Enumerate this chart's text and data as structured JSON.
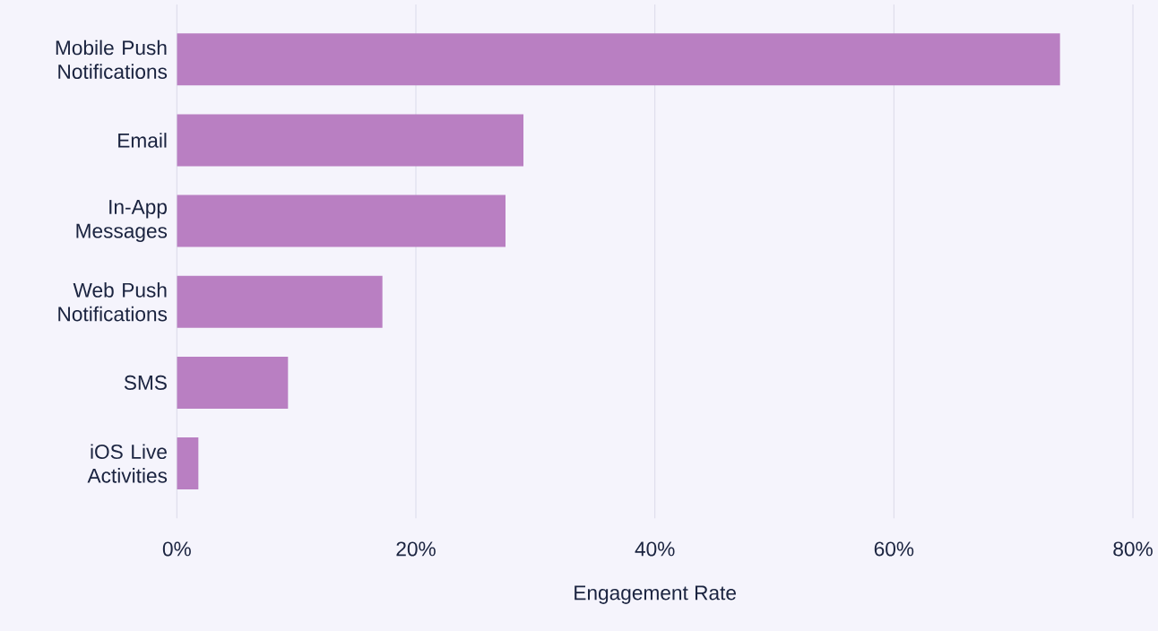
{
  "chart_data": {
    "type": "bar",
    "orientation": "horizontal",
    "xlabel": "Engagement Rate",
    "categories": [
      "Mobile Push Notifications",
      "Email",
      "In-App Messages",
      "Web Push Notifications",
      "SMS",
      "iOS Live Activities"
    ],
    "values": [
      73.9,
      29.0,
      27.5,
      17.2,
      9.3,
      1.8
    ],
    "color": "#b97fc2",
    "xlim": [
      0,
      80
    ],
    "xticks": [
      {
        "value": 0,
        "label": "0%"
      },
      {
        "value": 20,
        "label": "20%"
      },
      {
        "value": 40,
        "label": "40%"
      },
      {
        "value": 60,
        "label": "60%"
      },
      {
        "value": 80,
        "label": "80%"
      }
    ],
    "grid": "x"
  }
}
